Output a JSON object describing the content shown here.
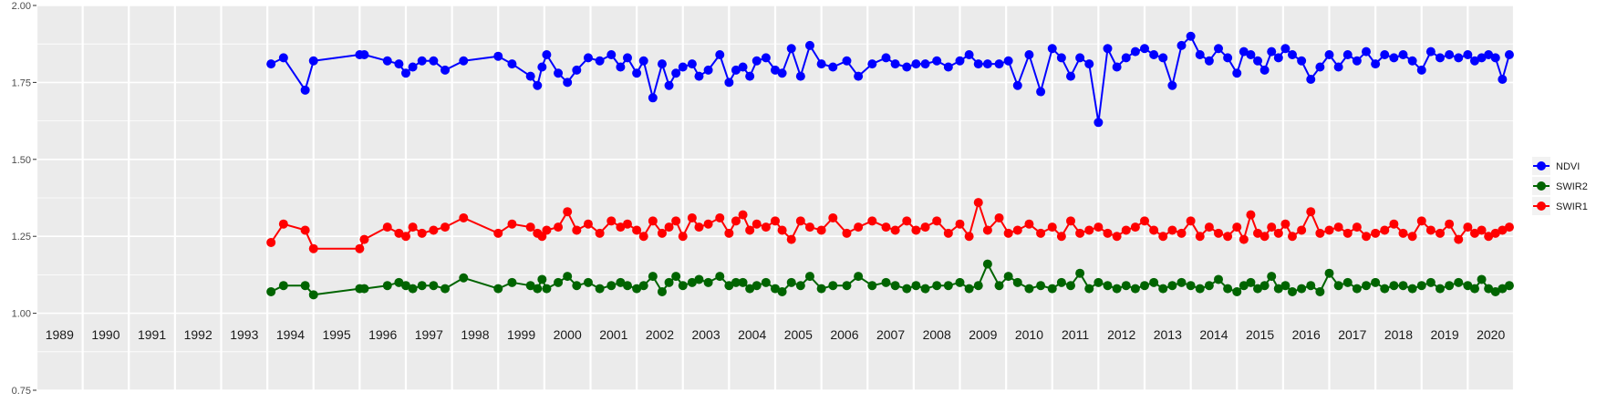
{
  "chart_data": {
    "type": "line",
    "title": "",
    "xlabel": "",
    "ylabel": "",
    "xlim": [
      1989,
      2021
    ],
    "ylim": [
      0.75,
      2.0
    ],
    "yticks": [
      "0.75",
      "1.00",
      "1.25",
      "1.50",
      "1.75",
      "2.00"
    ],
    "year_labels": [
      "1989",
      "1990",
      "1991",
      "1992",
      "1993",
      "1994",
      "1995",
      "1996",
      "1997",
      "1998",
      "1999",
      "2000",
      "2001",
      "2002",
      "2003",
      "2004",
      "2005",
      "2006",
      "2007",
      "2008",
      "2009",
      "2010",
      "2011",
      "2012",
      "2013",
      "2014",
      "2015",
      "2016",
      "2017",
      "2018",
      "2019",
      "2020"
    ],
    "grid": true,
    "legend_position": "right",
    "x": [
      1994.08,
      1994.35,
      1994.82,
      1995.0,
      1996.0,
      1996.1,
      1996.6,
      1996.85,
      1997.0,
      1997.15,
      1997.35,
      1997.6,
      1997.85,
      1998.25,
      1999.0,
      1999.3,
      1999.7,
      1999.85,
      1999.95,
      2000.05,
      2000.3,
      2000.5,
      2000.7,
      2000.95,
      2001.2,
      2001.45,
      2001.65,
      2001.8,
      2002.0,
      2002.15,
      2002.35,
      2002.55,
      2002.7,
      2002.85,
      2003.0,
      2003.2,
      2003.35,
      2003.55,
      2003.8,
      2004.0,
      2004.15,
      2004.3,
      2004.45,
      2004.6,
      2004.8,
      2005.0,
      2005.15,
      2005.35,
      2005.55,
      2005.75,
      2006.0,
      2006.25,
      2006.55,
      2006.8,
      2007.1,
      2007.4,
      2007.6,
      2007.85,
      2008.05,
      2008.25,
      2008.5,
      2008.75,
      2009.0,
      2009.2,
      2009.4,
      2009.6,
      2009.85,
      2010.05,
      2010.25,
      2010.5,
      2010.75,
      2011.0,
      2011.2,
      2011.4,
      2011.6,
      2011.8,
      2012.0,
      2012.2,
      2012.4,
      2012.6,
      2012.8,
      2013.0,
      2013.2,
      2013.4,
      2013.6,
      2013.8,
      2014.0,
      2014.2,
      2014.4,
      2014.6,
      2014.8,
      2015.0,
      2015.15,
      2015.3,
      2015.45,
      2015.6,
      2015.75,
      2015.9,
      2016.05,
      2016.2,
      2016.4,
      2016.6,
      2016.8,
      2017.0,
      2017.2,
      2017.4,
      2017.6,
      2017.8,
      2018.0,
      2018.2,
      2018.4,
      2018.6,
      2018.8,
      2019.0,
      2019.2,
      2019.4,
      2019.6,
      2019.8,
      2020.0,
      2020.15,
      2020.3,
      2020.45,
      2020.6,
      2020.75,
      2020.9
    ],
    "series": [
      {
        "name": "NDVI",
        "color": "#0000FF",
        "values": [
          1.81,
          1.83,
          1.725,
          1.82,
          1.84,
          1.84,
          1.82,
          1.81,
          1.78,
          1.8,
          1.82,
          1.82,
          1.79,
          1.82,
          1.835,
          1.81,
          1.77,
          1.74,
          1.8,
          1.84,
          1.78,
          1.75,
          1.79,
          1.83,
          1.82,
          1.84,
          1.8,
          1.83,
          1.78,
          1.82,
          1.7,
          1.81,
          1.74,
          1.78,
          1.8,
          1.81,
          1.77,
          1.79,
          1.84,
          1.75,
          1.79,
          1.8,
          1.77,
          1.82,
          1.83,
          1.79,
          1.78,
          1.86,
          1.77,
          1.87,
          1.81,
          1.8,
          1.82,
          1.77,
          1.81,
          1.83,
          1.81,
          1.8,
          1.81,
          1.81,
          1.82,
          1.8,
          1.82,
          1.84,
          1.81,
          1.81,
          1.81,
          1.82,
          1.74,
          1.84,
          1.72,
          1.86,
          1.83,
          1.77,
          1.83,
          1.81,
          1.62,
          1.86,
          1.8,
          1.83,
          1.85,
          1.86,
          1.84,
          1.83,
          1.74,
          1.87,
          1.9,
          1.84,
          1.82,
          1.86,
          1.83,
          1.78,
          1.85,
          1.84,
          1.82,
          1.79,
          1.85,
          1.83,
          1.86,
          1.84,
          1.82,
          1.76,
          1.8,
          1.84,
          1.8,
          1.84,
          1.82,
          1.85,
          1.81,
          1.84,
          1.83,
          1.84,
          1.82,
          1.79,
          1.85,
          1.83,
          1.84,
          1.83,
          1.84,
          1.82,
          1.83,
          1.84,
          1.83,
          1.76,
          1.84
        ]
      },
      {
        "name": "SWIR2",
        "color": "#006400",
        "values": [
          1.07,
          1.09,
          1.09,
          1.06,
          1.08,
          1.08,
          1.09,
          1.1,
          1.09,
          1.08,
          1.09,
          1.09,
          1.08,
          1.115,
          1.08,
          1.1,
          1.09,
          1.08,
          1.11,
          1.08,
          1.1,
          1.12,
          1.09,
          1.1,
          1.08,
          1.09,
          1.1,
          1.09,
          1.08,
          1.09,
          1.12,
          1.07,
          1.1,
          1.12,
          1.09,
          1.1,
          1.11,
          1.1,
          1.12,
          1.09,
          1.1,
          1.1,
          1.08,
          1.09,
          1.1,
          1.08,
          1.07,
          1.1,
          1.09,
          1.12,
          1.08,
          1.09,
          1.09,
          1.12,
          1.09,
          1.1,
          1.09,
          1.08,
          1.09,
          1.08,
          1.09,
          1.09,
          1.1,
          1.08,
          1.09,
          1.16,
          1.09,
          1.12,
          1.1,
          1.08,
          1.09,
          1.08,
          1.1,
          1.09,
          1.13,
          1.08,
          1.1,
          1.09,
          1.08,
          1.09,
          1.08,
          1.09,
          1.1,
          1.08,
          1.09,
          1.1,
          1.09,
          1.08,
          1.09,
          1.11,
          1.08,
          1.07,
          1.09,
          1.1,
          1.08,
          1.09,
          1.12,
          1.08,
          1.09,
          1.07,
          1.08,
          1.09,
          1.07,
          1.13,
          1.09,
          1.1,
          1.08,
          1.09,
          1.1,
          1.08,
          1.09,
          1.09,
          1.08,
          1.09,
          1.1,
          1.08,
          1.09,
          1.1,
          1.09,
          1.08,
          1.11,
          1.08,
          1.07,
          1.08,
          1.09
        ]
      },
      {
        "name": "SWIR1",
        "color": "#FF0000",
        "values": [
          1.23,
          1.29,
          1.27,
          1.21,
          1.21,
          1.24,
          1.28,
          1.26,
          1.25,
          1.28,
          1.26,
          1.27,
          1.28,
          1.31,
          1.26,
          1.29,
          1.28,
          1.26,
          1.25,
          1.27,
          1.28,
          1.33,
          1.27,
          1.29,
          1.26,
          1.3,
          1.28,
          1.29,
          1.27,
          1.25,
          1.3,
          1.26,
          1.28,
          1.3,
          1.25,
          1.31,
          1.28,
          1.29,
          1.31,
          1.26,
          1.3,
          1.32,
          1.27,
          1.29,
          1.28,
          1.3,
          1.27,
          1.24,
          1.3,
          1.28,
          1.27,
          1.31,
          1.26,
          1.28,
          1.3,
          1.28,
          1.27,
          1.3,
          1.27,
          1.28,
          1.3,
          1.26,
          1.29,
          1.25,
          1.36,
          1.27,
          1.31,
          1.26,
          1.27,
          1.29,
          1.26,
          1.28,
          1.25,
          1.3,
          1.26,
          1.27,
          1.28,
          1.26,
          1.25,
          1.27,
          1.28,
          1.3,
          1.27,
          1.25,
          1.27,
          1.26,
          1.3,
          1.25,
          1.28,
          1.26,
          1.25,
          1.28,
          1.24,
          1.32,
          1.26,
          1.25,
          1.28,
          1.26,
          1.29,
          1.25,
          1.27,
          1.33,
          1.26,
          1.27,
          1.28,
          1.26,
          1.28,
          1.25,
          1.26,
          1.27,
          1.29,
          1.26,
          1.25,
          1.3,
          1.27,
          1.26,
          1.29,
          1.24,
          1.28,
          1.26,
          1.27,
          1.25,
          1.26,
          1.27,
          1.28
        ]
      }
    ]
  }
}
